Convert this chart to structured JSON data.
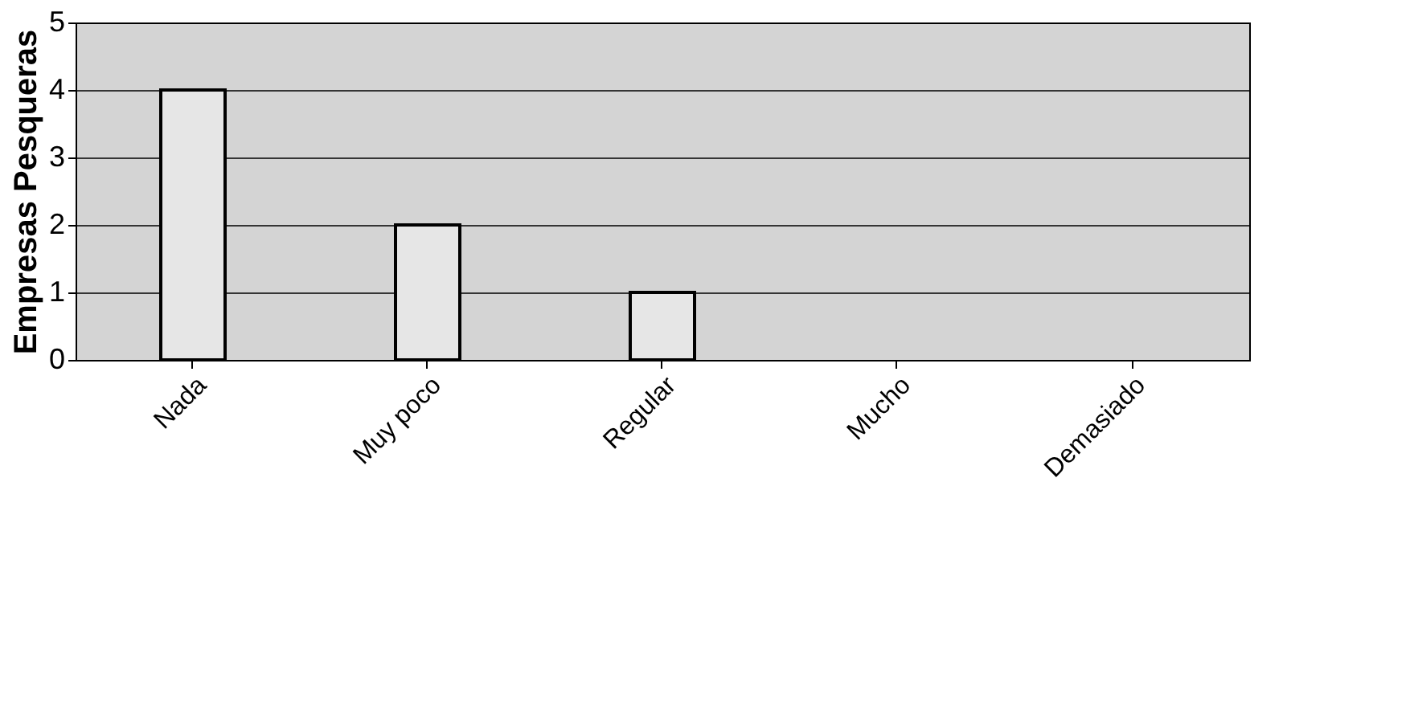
{
  "chart_data": {
    "type": "bar",
    "ylabel": "Empresas Pesqueras",
    "categories": [
      "Nada",
      "Muy poco",
      "Regular",
      "Mucho",
      "Demasiado"
    ],
    "values": [
      4,
      2,
      1,
      0,
      0
    ],
    "color": "#e6e6e6",
    "ylim": [
      0,
      5
    ],
    "yticks": [
      0,
      1,
      2,
      3,
      4,
      5
    ],
    "grid": "y"
  }
}
